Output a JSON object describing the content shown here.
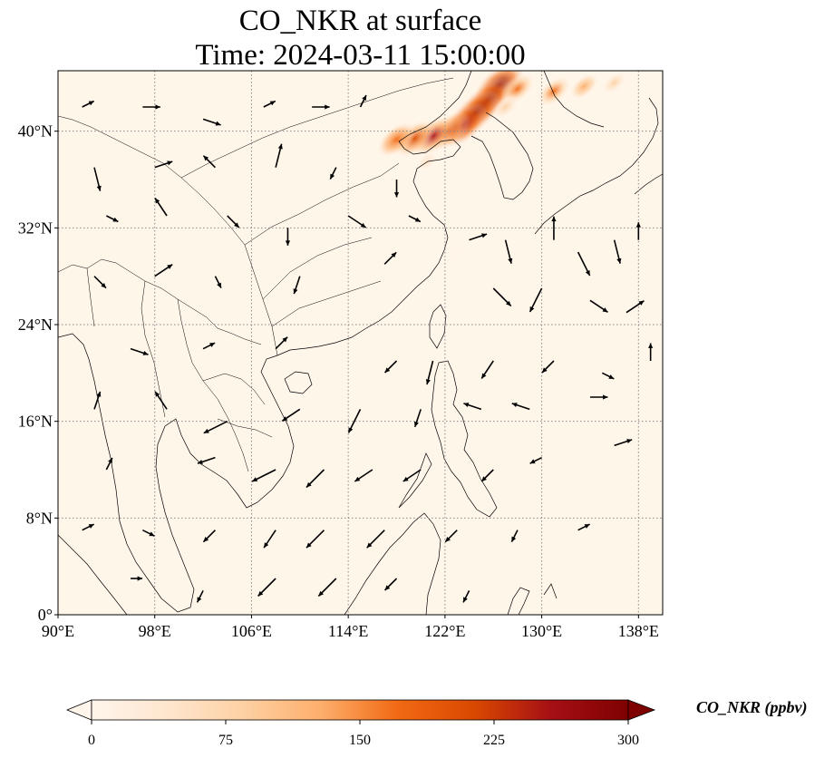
{
  "title": {
    "line1": "CO_NKR at surface",
    "line2": "Time: 2024-03-11 15:00:00"
  },
  "map": {
    "extent": {
      "lon": [
        90,
        140
      ],
      "lat": [
        0,
        45
      ]
    },
    "lon_ticks": [
      {
        "value": 90,
        "label": "90°E"
      },
      {
        "value": 98,
        "label": "98°E"
      },
      {
        "value": 106,
        "label": "106°E"
      },
      {
        "value": 114,
        "label": "114°E"
      },
      {
        "value": 122,
        "label": "122°E"
      },
      {
        "value": 130,
        "label": "130°E"
      },
      {
        "value": 138,
        "label": "138°E"
      }
    ],
    "lat_ticks": [
      {
        "value": 0,
        "label": "0°"
      },
      {
        "value": 8,
        "label": "8°N"
      },
      {
        "value": 16,
        "label": "16°N"
      },
      {
        "value": 24,
        "label": "24°N"
      },
      {
        "value": 32,
        "label": "32°N"
      },
      {
        "value": 40,
        "label": "40°N"
      }
    ],
    "background_color": "#fff6ea",
    "coastline_color": "#000000",
    "gridline_color": "#888888"
  },
  "colorbar": {
    "label": "CO_NKR (ppbv)",
    "ticks": [
      {
        "value": 0,
        "label": "0"
      },
      {
        "value": 75,
        "label": "75"
      },
      {
        "value": 150,
        "label": "150"
      },
      {
        "value": 225,
        "label": "225"
      },
      {
        "value": 300,
        "label": "300"
      }
    ],
    "range": [
      0,
      300
    ],
    "colors": [
      "#fff5eb",
      "#fee6ce",
      "#fdd0a2",
      "#fdae6b",
      "#f16913",
      "#d94801",
      "#a50f15",
      "#7f0000"
    ]
  },
  "plume": [
    {
      "lon": 126.5,
      "lat": 43.8,
      "value": 290
    },
    {
      "lon": 125.5,
      "lat": 42.5,
      "value": 280
    },
    {
      "lon": 124.5,
      "lat": 41.5,
      "value": 285
    },
    {
      "lon": 123.5,
      "lat": 40.5,
      "value": 270
    },
    {
      "lon": 122.3,
      "lat": 40.0,
      "value": 230
    },
    {
      "lon": 121.0,
      "lat": 39.6,
      "value": 240
    },
    {
      "lon": 119.5,
      "lat": 39.4,
      "value": 210
    },
    {
      "lon": 118.0,
      "lat": 39.3,
      "value": 190
    },
    {
      "lon": 128.0,
      "lat": 43.5,
      "value": 160
    },
    {
      "lon": 131.0,
      "lat": 43.3,
      "value": 150
    },
    {
      "lon": 133.5,
      "lat": 43.7,
      "value": 110
    },
    {
      "lon": 136.0,
      "lat": 44.0,
      "value": 80
    },
    {
      "lon": 127.0,
      "lat": 42.0,
      "value": 90
    },
    {
      "lon": 120.5,
      "lat": 37.5,
      "value": 40
    },
    {
      "lon": 123.0,
      "lat": 30.0,
      "value": 15
    }
  ],
  "wind": [
    {
      "lon": 92,
      "lat": 42,
      "u": 2,
      "v": 1
    },
    {
      "lon": 97,
      "lat": 42,
      "u": 3,
      "v": 0
    },
    {
      "lon": 102,
      "lat": 41,
      "u": 3,
      "v": -1
    },
    {
      "lon": 107,
      "lat": 42,
      "u": 2,
      "v": 1
    },
    {
      "lon": 111,
      "lat": 42,
      "u": 3,
      "v": 0
    },
    {
      "lon": 115,
      "lat": 42,
      "u": 1,
      "v": 2
    },
    {
      "lon": 93,
      "lat": 37,
      "u": 1,
      "v": -4
    },
    {
      "lon": 98,
      "lat": 37,
      "u": 3,
      "v": 1
    },
    {
      "lon": 103,
      "lat": 37,
      "u": -2,
      "v": 2
    },
    {
      "lon": 108,
      "lat": 37,
      "u": 1,
      "v": 4
    },
    {
      "lon": 113,
      "lat": 37,
      "u": -1,
      "v": -2
    },
    {
      "lon": 118,
      "lat": 36,
      "u": 0,
      "v": -3
    },
    {
      "lon": 94,
      "lat": 33,
      "u": 2,
      "v": -1
    },
    {
      "lon": 99,
      "lat": 33,
      "u": -2,
      "v": 3
    },
    {
      "lon": 104,
      "lat": 33,
      "u": 2,
      "v": -2
    },
    {
      "lon": 109,
      "lat": 32,
      "u": 0,
      "v": -3
    },
    {
      "lon": 114,
      "lat": 33,
      "u": 3,
      "v": -2
    },
    {
      "lon": 119,
      "lat": 33,
      "u": 2,
      "v": -1
    },
    {
      "lon": 124,
      "lat": 31,
      "u": 3,
      "v": 1
    },
    {
      "lon": 127,
      "lat": 31,
      "u": 1,
      "v": -4
    },
    {
      "lon": 131,
      "lat": 31,
      "u": 0,
      "v": 4
    },
    {
      "lon": 133,
      "lat": 30,
      "u": 2,
      "v": -4
    },
    {
      "lon": 136,
      "lat": 31,
      "u": 1,
      "v": -4
    },
    {
      "lon": 138,
      "lat": 31,
      "u": 0,
      "v": 3
    },
    {
      "lon": 93,
      "lat": 28,
      "u": 2,
      "v": -2
    },
    {
      "lon": 98,
      "lat": 28,
      "u": 3,
      "v": 2
    },
    {
      "lon": 103,
      "lat": 28,
      "u": 1,
      "v": -2
    },
    {
      "lon": 110,
      "lat": 28,
      "u": -1,
      "v": -3
    },
    {
      "lon": 117,
      "lat": 29,
      "u": 2,
      "v": 2
    },
    {
      "lon": 126,
      "lat": 27,
      "u": 3,
      "v": -3
    },
    {
      "lon": 130,
      "lat": 27,
      "u": -2,
      "v": -4
    },
    {
      "lon": 134,
      "lat": 26,
      "u": 3,
      "v": -2
    },
    {
      "lon": 137,
      "lat": 25,
      "u": 3,
      "v": 2
    },
    {
      "lon": 96,
      "lat": 22,
      "u": 3,
      "v": -1
    },
    {
      "lon": 102,
      "lat": 22,
      "u": 2,
      "v": 1
    },
    {
      "lon": 108,
      "lat": 22,
      "u": 2,
      "v": 2
    },
    {
      "lon": 118,
      "lat": 21,
      "u": -2,
      "v": -2
    },
    {
      "lon": 121,
      "lat": 21,
      "u": -1,
      "v": -4
    },
    {
      "lon": 126,
      "lat": 21,
      "u": -2,
      "v": -3
    },
    {
      "lon": 131,
      "lat": 21,
      "u": -2,
      "v": -2
    },
    {
      "lon": 135,
      "lat": 20,
      "u": 2,
      "v": -1
    },
    {
      "lon": 139,
      "lat": 21,
      "u": 0,
      "v": 3
    },
    {
      "lon": 93,
      "lat": 17,
      "u": 1,
      "v": 3
    },
    {
      "lon": 99,
      "lat": 17,
      "u": -2,
      "v": 3
    },
    {
      "lon": 104,
      "lat": 16,
      "u": -4,
      "v": -2
    },
    {
      "lon": 110,
      "lat": 17,
      "u": -3,
      "v": -2
    },
    {
      "lon": 115,
      "lat": 17,
      "u": -2,
      "v": -4
    },
    {
      "lon": 120,
      "lat": 17,
      "u": -1,
      "v": -3
    },
    {
      "lon": 125,
      "lat": 17,
      "u": -3,
      "v": 1
    },
    {
      "lon": 129,
      "lat": 17,
      "u": -3,
      "v": 1
    },
    {
      "lon": 134,
      "lat": 18,
      "u": 3,
      "v": 0
    },
    {
      "lon": 94,
      "lat": 12,
      "u": 1,
      "v": 2
    },
    {
      "lon": 103,
      "lat": 13,
      "u": -3,
      "v": -1
    },
    {
      "lon": 108,
      "lat": 12,
      "u": -4,
      "v": -2
    },
    {
      "lon": 112,
      "lat": 12,
      "u": -3,
      "v": -3
    },
    {
      "lon": 116,
      "lat": 12,
      "u": -3,
      "v": -2
    },
    {
      "lon": 120,
      "lat": 12,
      "u": -3,
      "v": -2
    },
    {
      "lon": 126,
      "lat": 12,
      "u": -2,
      "v": -2
    },
    {
      "lon": 130,
      "lat": 13,
      "u": -2,
      "v": -1
    },
    {
      "lon": 136,
      "lat": 14,
      "u": 3,
      "v": 1
    },
    {
      "lon": 92,
      "lat": 7,
      "u": 2,
      "v": 1
    },
    {
      "lon": 97,
      "lat": 7,
      "u": 2,
      "v": -1
    },
    {
      "lon": 103,
      "lat": 7,
      "u": -2,
      "v": -2
    },
    {
      "lon": 108,
      "lat": 7,
      "u": -2,
      "v": -3
    },
    {
      "lon": 112,
      "lat": 7,
      "u": -3,
      "v": -3
    },
    {
      "lon": 117,
      "lat": 7,
      "u": -3,
      "v": -3
    },
    {
      "lon": 123,
      "lat": 7,
      "u": -2,
      "v": -2
    },
    {
      "lon": 128,
      "lat": 7,
      "u": -1,
      "v": -2
    },
    {
      "lon": 133,
      "lat": 7,
      "u": 2,
      "v": 1
    },
    {
      "lon": 96,
      "lat": 3,
      "u": 2,
      "v": 0
    },
    {
      "lon": 102,
      "lat": 2,
      "u": -1,
      "v": -2
    },
    {
      "lon": 108,
      "lat": 3,
      "u": -3,
      "v": -3
    },
    {
      "lon": 113,
      "lat": 3,
      "u": -3,
      "v": -3
    },
    {
      "lon": 118,
      "lat": 3,
      "u": -2,
      "v": -2
    },
    {
      "lon": 124,
      "lat": 2,
      "u": -1,
      "v": -2
    }
  ]
}
